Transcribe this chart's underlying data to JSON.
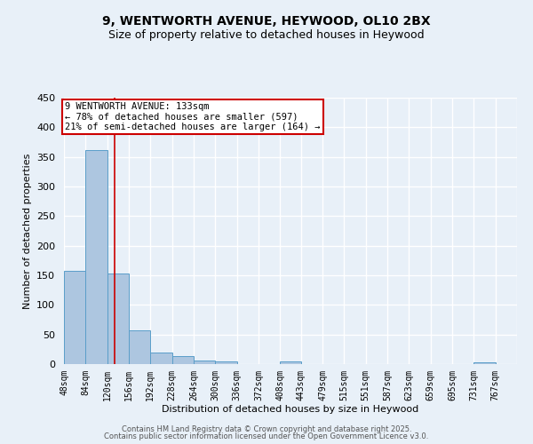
{
  "title1": "9, WENTWORTH AVENUE, HEYWOOD, OL10 2BX",
  "title2": "Size of property relative to detached houses in Heywood",
  "xlabel": "Distribution of detached houses by size in Heywood",
  "ylabel": "Number of detached properties",
  "bin_labels": [
    "48sqm",
    "84sqm",
    "120sqm",
    "156sqm",
    "192sqm",
    "228sqm",
    "264sqm",
    "300sqm",
    "336sqm",
    "372sqm",
    "408sqm",
    "443sqm",
    "479sqm",
    "515sqm",
    "551sqm",
    "587sqm",
    "623sqm",
    "659sqm",
    "695sqm",
    "731sqm",
    "767sqm"
  ],
  "bin_edges": [
    48,
    84,
    120,
    156,
    192,
    228,
    264,
    300,
    336,
    372,
    408,
    443,
    479,
    515,
    551,
    587,
    623,
    659,
    695,
    731,
    767
  ],
  "bar_values": [
    157,
    362,
    153,
    57,
    19,
    13,
    6,
    4,
    0,
    0,
    4,
    0,
    0,
    0,
    0,
    0,
    0,
    0,
    0,
    3
  ],
  "bar_color": "#adc6e0",
  "bar_edge_color": "#5a9ec9",
  "vline_x": 133,
  "vline_color": "#cc0000",
  "ylim": [
    0,
    450
  ],
  "annotation_title": "9 WENTWORTH AVENUE: 133sqm",
  "annotation_line1": "← 78% of detached houses are smaller (597)",
  "annotation_line2": "21% of semi-detached houses are larger (164) →",
  "annotation_box_color": "#cc0000",
  "annotation_bg": "#ffffff",
  "background_color": "#e8f0f8",
  "grid_color": "#ffffff",
  "footer1": "Contains HM Land Registry data © Crown copyright and database right 2025.",
  "footer2": "Contains public sector information licensed under the Open Government Licence v3.0."
}
